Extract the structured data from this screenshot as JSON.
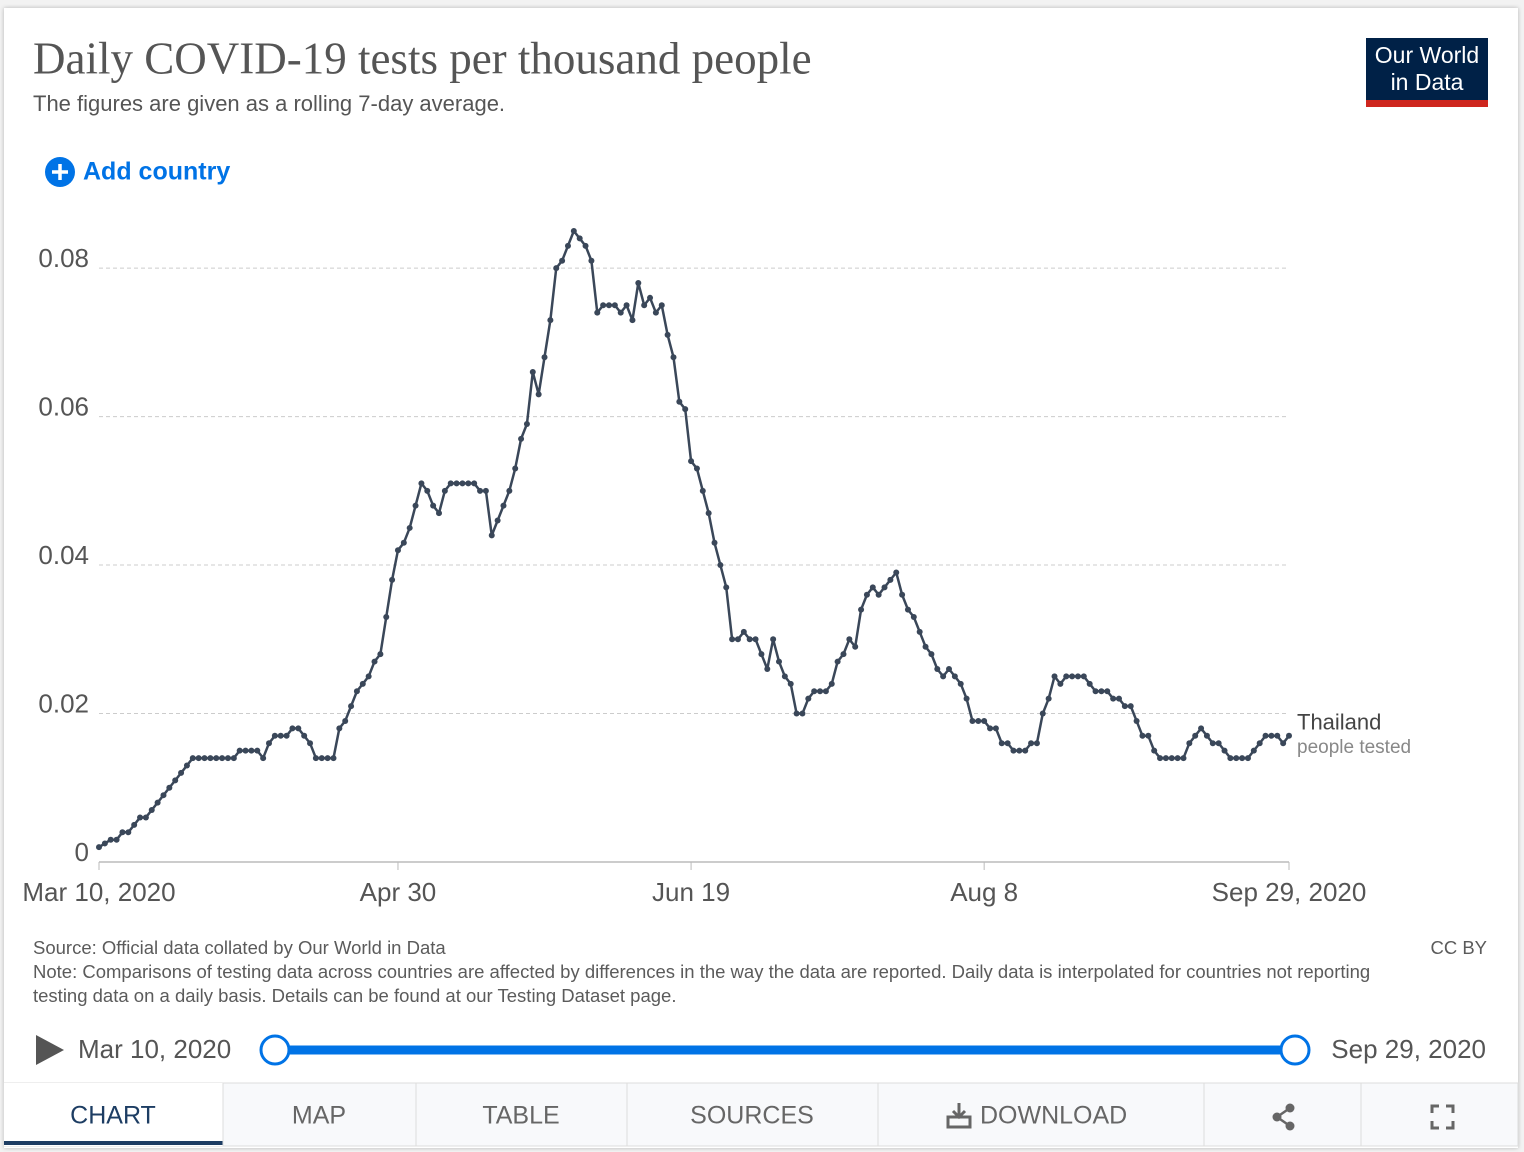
{
  "header": {
    "title": "Daily COVID-19 tests per thousand people",
    "subtitle": "The figures are given as a rolling 7-day average.",
    "add_country": "Add country",
    "logo": [
      "Our World",
      "in Data"
    ]
  },
  "chart_data": {
    "type": "line",
    "x": [
      "2020-03-10",
      "2020-03-11",
      "2020-03-12",
      "2020-03-13",
      "2020-03-14",
      "2020-03-15",
      "2020-03-16",
      "2020-03-17",
      "2020-03-18",
      "2020-03-19",
      "2020-03-20",
      "2020-03-21",
      "2020-03-22",
      "2020-03-23",
      "2020-03-24",
      "2020-03-25",
      "2020-03-26",
      "2020-03-27",
      "2020-03-28",
      "2020-03-29",
      "2020-03-30",
      "2020-03-31",
      "2020-04-01",
      "2020-04-02",
      "2020-04-03",
      "2020-04-04",
      "2020-04-05",
      "2020-04-06",
      "2020-04-07",
      "2020-04-08",
      "2020-04-09",
      "2020-04-10",
      "2020-04-11",
      "2020-04-12",
      "2020-04-13",
      "2020-04-14",
      "2020-04-15",
      "2020-04-16",
      "2020-04-17",
      "2020-04-18",
      "2020-04-19",
      "2020-04-20",
      "2020-04-21",
      "2020-04-22",
      "2020-04-23",
      "2020-04-24",
      "2020-04-25",
      "2020-04-26",
      "2020-04-27",
      "2020-04-28",
      "2020-04-29",
      "2020-04-30",
      "2020-05-01",
      "2020-05-02",
      "2020-05-03",
      "2020-05-04",
      "2020-05-05",
      "2020-05-06",
      "2020-05-07",
      "2020-05-08",
      "2020-05-09",
      "2020-05-10",
      "2020-05-11",
      "2020-05-12",
      "2020-05-13",
      "2020-05-14",
      "2020-05-15",
      "2020-05-16",
      "2020-05-17",
      "2020-05-18",
      "2020-05-19",
      "2020-05-20",
      "2020-05-21",
      "2020-05-22",
      "2020-05-23",
      "2020-05-24",
      "2020-05-25",
      "2020-05-26",
      "2020-05-27",
      "2020-05-28",
      "2020-05-29",
      "2020-05-30",
      "2020-05-31",
      "2020-06-01",
      "2020-06-02",
      "2020-06-03",
      "2020-06-04",
      "2020-06-05",
      "2020-06-06",
      "2020-06-07",
      "2020-06-08",
      "2020-06-09",
      "2020-06-10",
      "2020-06-11",
      "2020-06-12",
      "2020-06-13",
      "2020-06-14",
      "2020-06-15",
      "2020-06-16",
      "2020-06-17",
      "2020-06-18",
      "2020-06-19",
      "2020-06-20",
      "2020-06-21",
      "2020-06-22",
      "2020-06-23",
      "2020-06-24",
      "2020-06-25",
      "2020-06-26",
      "2020-06-27",
      "2020-06-28",
      "2020-06-29",
      "2020-06-30",
      "2020-07-01",
      "2020-07-02",
      "2020-07-03",
      "2020-07-04",
      "2020-07-05",
      "2020-07-06",
      "2020-07-07",
      "2020-07-08",
      "2020-07-09",
      "2020-07-10",
      "2020-07-11",
      "2020-07-12",
      "2020-07-13",
      "2020-07-14",
      "2020-07-15",
      "2020-07-16",
      "2020-07-17",
      "2020-07-18",
      "2020-07-19",
      "2020-07-20",
      "2020-07-21",
      "2020-07-22",
      "2020-07-23",
      "2020-07-24",
      "2020-07-25",
      "2020-07-26",
      "2020-07-27",
      "2020-07-28",
      "2020-07-29",
      "2020-07-30",
      "2020-07-31",
      "2020-08-01",
      "2020-08-02",
      "2020-08-03",
      "2020-08-04",
      "2020-08-05",
      "2020-08-06",
      "2020-08-07",
      "2020-08-08",
      "2020-08-09",
      "2020-08-10",
      "2020-08-11",
      "2020-08-12",
      "2020-08-13",
      "2020-08-14",
      "2020-08-15",
      "2020-08-16",
      "2020-08-17",
      "2020-08-18",
      "2020-08-19",
      "2020-08-20",
      "2020-08-21",
      "2020-08-22",
      "2020-08-23",
      "2020-08-24",
      "2020-08-25",
      "2020-08-26",
      "2020-08-27",
      "2020-08-28",
      "2020-08-29",
      "2020-08-30",
      "2020-08-31",
      "2020-09-01",
      "2020-09-02",
      "2020-09-03",
      "2020-09-04",
      "2020-09-05",
      "2020-09-06",
      "2020-09-07",
      "2020-09-08",
      "2020-09-09",
      "2020-09-10",
      "2020-09-11",
      "2020-09-12",
      "2020-09-13",
      "2020-09-14",
      "2020-09-15",
      "2020-09-16",
      "2020-09-17",
      "2020-09-18",
      "2020-09-19",
      "2020-09-20",
      "2020-09-21",
      "2020-09-22",
      "2020-09-23",
      "2020-09-24",
      "2020-09-25",
      "2020-09-26",
      "2020-09-27",
      "2020-09-28",
      "2020-09-29"
    ],
    "series": [
      {
        "name": "Thailand",
        "unit_label": "people tested",
        "color": "#3a4759",
        "values": [
          0.002,
          0.0025,
          0.003,
          0.003,
          0.004,
          0.004,
          0.005,
          0.006,
          0.006,
          0.007,
          0.008,
          0.009,
          0.01,
          0.011,
          0.012,
          0.013,
          0.014,
          0.014,
          0.014,
          0.014,
          0.014,
          0.014,
          0.014,
          0.014,
          0.015,
          0.015,
          0.015,
          0.015,
          0.014,
          0.016,
          0.017,
          0.017,
          0.017,
          0.018,
          0.018,
          0.017,
          0.016,
          0.014,
          0.014,
          0.014,
          0.014,
          0.018,
          0.019,
          0.021,
          0.023,
          0.024,
          0.025,
          0.027,
          0.028,
          0.033,
          0.038,
          0.042,
          0.043,
          0.045,
          0.048,
          0.051,
          0.05,
          0.048,
          0.047,
          0.05,
          0.051,
          0.051,
          0.051,
          0.051,
          0.051,
          0.05,
          0.05,
          0.044,
          0.046,
          0.048,
          0.05,
          0.053,
          0.057,
          0.059,
          0.066,
          0.063,
          0.068,
          0.073,
          0.08,
          0.081,
          0.083,
          0.085,
          0.084,
          0.083,
          0.081,
          0.074,
          0.075,
          0.075,
          0.075,
          0.074,
          0.075,
          0.073,
          0.078,
          0.075,
          0.076,
          0.074,
          0.075,
          0.071,
          0.068,
          0.062,
          0.061,
          0.054,
          0.053,
          0.05,
          0.047,
          0.043,
          0.04,
          0.037,
          0.03,
          0.03,
          0.031,
          0.03,
          0.03,
          0.028,
          0.026,
          0.03,
          0.027,
          0.025,
          0.024,
          0.02,
          0.02,
          0.022,
          0.023,
          0.023,
          0.023,
          0.024,
          0.027,
          0.028,
          0.03,
          0.029,
          0.034,
          0.036,
          0.037,
          0.036,
          0.037,
          0.038,
          0.039,
          0.036,
          0.034,
          0.033,
          0.031,
          0.029,
          0.028,
          0.026,
          0.025,
          0.026,
          0.025,
          0.024,
          0.022,
          0.019,
          0.019,
          0.019,
          0.018,
          0.018,
          0.016,
          0.016,
          0.015,
          0.015,
          0.015,
          0.016,
          0.016,
          0.02,
          0.022,
          0.025,
          0.024,
          0.025,
          0.025,
          0.025,
          0.025,
          0.024,
          0.023,
          0.023,
          0.023,
          0.022,
          0.022,
          0.021,
          0.021,
          0.019,
          0.017,
          0.017,
          0.015,
          0.014,
          0.014,
          0.014,
          0.014,
          0.014,
          0.016,
          0.017,
          0.018,
          0.017,
          0.016,
          0.016,
          0.015,
          0.014,
          0.014,
          0.014,
          0.014,
          0.015,
          0.016,
          0.017,
          0.017,
          0.017,
          0.016,
          0.017
        ]
      }
    ],
    "xlim": [
      "2020-03-10",
      "2020-09-29"
    ],
    "xticks": [
      {
        "value": "2020-03-10",
        "label": "Mar 10, 2020"
      },
      {
        "value": "2020-04-30",
        "label": "Apr 30"
      },
      {
        "value": "2020-06-19",
        "label": "Jun 19"
      },
      {
        "value": "2020-08-08",
        "label": "Aug 8"
      },
      {
        "value": "2020-09-29",
        "label": "Sep 29, 2020"
      }
    ],
    "ylim": [
      0,
      0.085
    ],
    "yticks": [
      0,
      0.02,
      0.04,
      0.06,
      0.08
    ],
    "grid": true
  },
  "footer": {
    "source": "Source: Official data collated by Our World in Data",
    "license": "CC BY",
    "note": "Note: Comparisons of testing data across countries are affected by differences in the way the data are reported. Daily data is interpolated for countries not reporting testing data on a daily basis. Details can be found at our Testing Dataset page."
  },
  "timeline": {
    "start": "Mar 10, 2020",
    "end": "Sep 29, 2020"
  },
  "tabs": [
    "CHART",
    "MAP",
    "TABLE",
    "SOURCES",
    "DOWNLOAD"
  ]
}
